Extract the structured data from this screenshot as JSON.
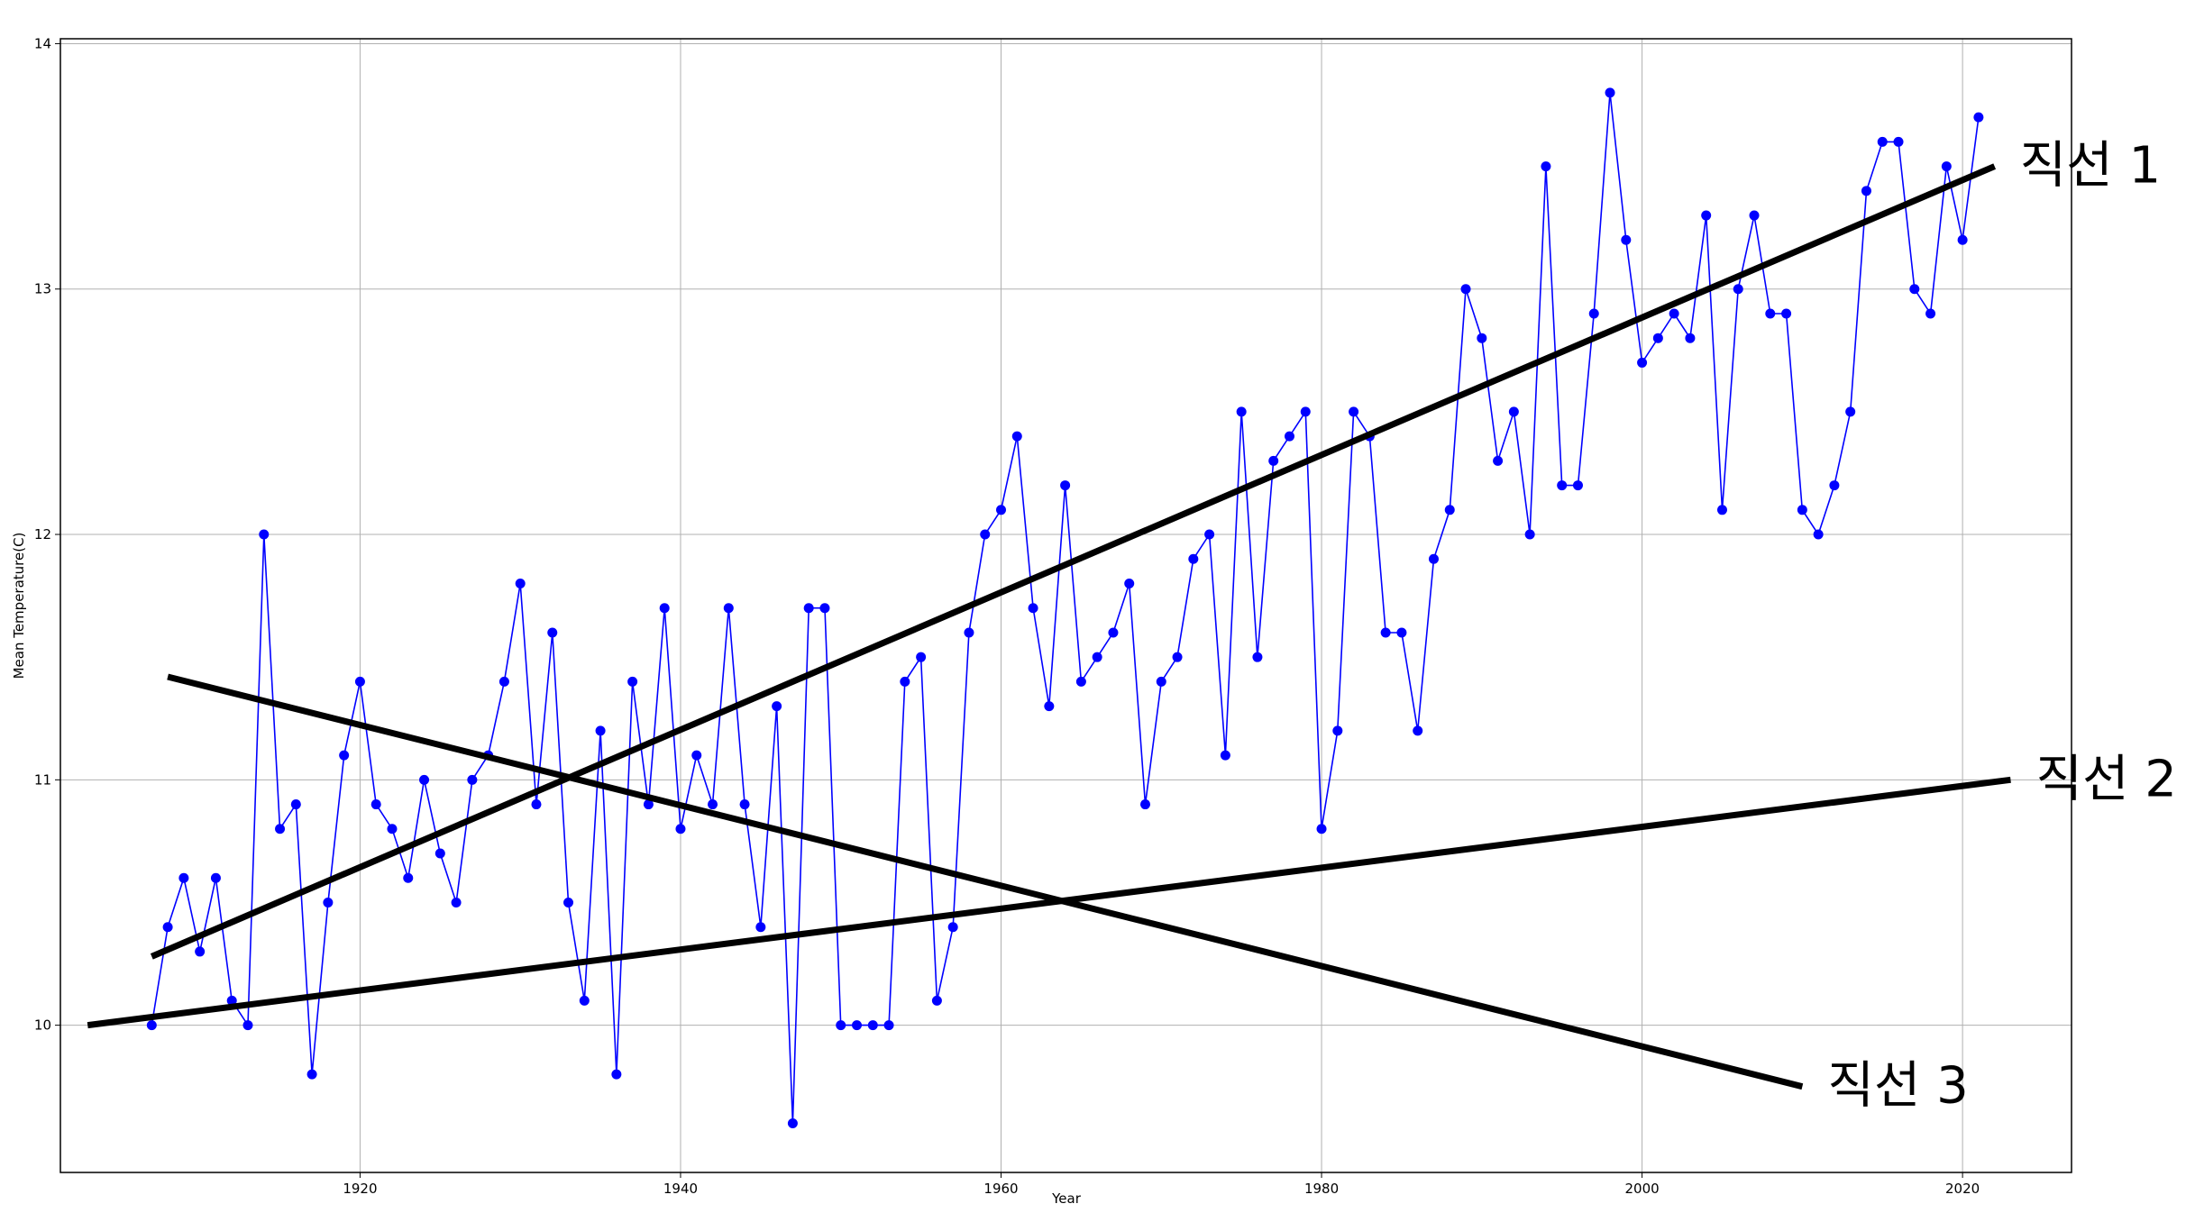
{
  "chart_data": {
    "type": "line",
    "xlabel": "Year",
    "ylabel": "Mean Temperature(C)",
    "xlim": [
      1901.3,
      2026.8
    ],
    "ylim": [
      9.4,
      14.02
    ],
    "xticks": [
      1920,
      1940,
      1960,
      1980,
      2000,
      2020
    ],
    "yticks": [
      10,
      11,
      12,
      13,
      14
    ],
    "grid": true,
    "series": [
      {
        "color": "#0000ff",
        "marker": "circle",
        "x": [
          1907,
          1908,
          1909,
          1910,
          1911,
          1912,
          1913,
          1914,
          1915,
          1916,
          1917,
          1918,
          1919,
          1920,
          1921,
          1922,
          1923,
          1924,
          1925,
          1926,
          1927,
          1928,
          1929,
          1930,
          1931,
          1932,
          1933,
          1934,
          1935,
          1936,
          1937,
          1938,
          1939,
          1940,
          1941,
          1942,
          1943,
          1944,
          1945,
          1946,
          1947,
          1948,
          1949,
          1950,
          1951,
          1952,
          1953,
          1954,
          1955,
          1956,
          1957,
          1958,
          1959,
          1960,
          1961,
          1962,
          1963,
          1964,
          1965,
          1966,
          1967,
          1968,
          1969,
          1970,
          1971,
          1972,
          1973,
          1974,
          1975,
          1976,
          1977,
          1978,
          1979,
          1980,
          1981,
          1982,
          1983,
          1984,
          1985,
          1986,
          1987,
          1988,
          1989,
          1990,
          1991,
          1992,
          1993,
          1994,
          1995,
          1996,
          1997,
          1998,
          1999,
          2000,
          2001,
          2002,
          2003,
          2004,
          2005,
          2006,
          2007,
          2008,
          2009,
          2010,
          2011,
          2012,
          2013,
          2014,
          2015,
          2016,
          2017,
          2018,
          2019,
          2020,
          2021
        ],
        "y": [
          10.0,
          10.4,
          10.6,
          10.3,
          10.6,
          10.1,
          10.0,
          12.0,
          10.8,
          10.9,
          9.8,
          10.5,
          11.1,
          11.4,
          10.9,
          10.8,
          10.6,
          11.0,
          10.7,
          10.5,
          11.0,
          11.1,
          11.4,
          11.8,
          10.9,
          11.6,
          10.5,
          10.1,
          11.2,
          9.8,
          11.4,
          10.9,
          11.7,
          10.8,
          11.1,
          10.9,
          11.7,
          10.9,
          10.4,
          11.3,
          9.6,
          11.7,
          11.7,
          10.0,
          10.0,
          10.0,
          10.0,
          11.4,
          11.5,
          10.1,
          10.4,
          11.6,
          12.0,
          12.1,
          12.4,
          11.7,
          11.3,
          12.2,
          11.4,
          11.5,
          11.6,
          11.8,
          10.9,
          11.4,
          11.5,
          11.9,
          12.0,
          11.1,
          12.5,
          11.5,
          12.3,
          12.4,
          12.5,
          10.8,
          11.2,
          12.5,
          12.4,
          11.6,
          11.6,
          11.2,
          11.9,
          12.1,
          13.0,
          12.8,
          12.3,
          12.5,
          12.0,
          13.5,
          12.2,
          12.2,
          12.9,
          13.8,
          13.2,
          12.7,
          12.8,
          12.9,
          12.8,
          13.3,
          12.1,
          13.0,
          13.3,
          12.9,
          12.9,
          12.1,
          12.0,
          12.2,
          12.5,
          13.4,
          13.6,
          13.6,
          13.0,
          12.9,
          13.5,
          13.2,
          13.7
        ]
      }
    ],
    "annotation_lines": [
      {
        "label": "직선 1",
        "from": [
          1907,
          10.28
        ],
        "to": [
          2022,
          13.5
        ]
      },
      {
        "label": "직선 2",
        "from": [
          1903,
          10.0
        ],
        "to": [
          2023,
          11.0
        ]
      },
      {
        "label": "직선 3",
        "from": [
          1908,
          11.42
        ],
        "to": [
          2010,
          9.75
        ]
      }
    ]
  }
}
